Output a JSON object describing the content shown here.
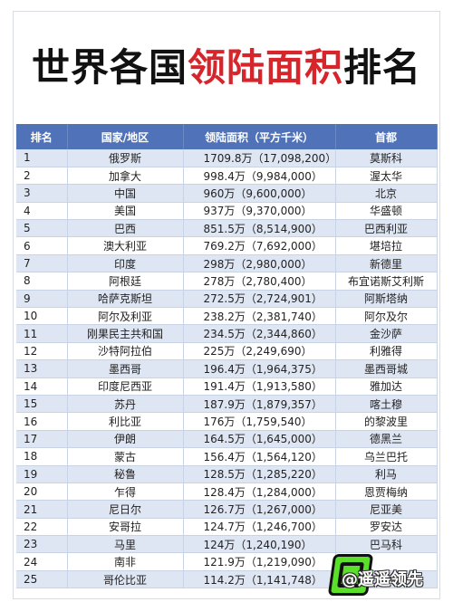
{
  "title": {
    "part1": "世界各国",
    "part2": "领陆面积",
    "part3": "排名"
  },
  "table": {
    "headers": [
      "排名",
      "国家/地区",
      "领陆面积（平方千米）",
      "首都"
    ],
    "rows": [
      {
        "rank": "1",
        "country": "俄罗斯",
        "area": "1709.8万（17,098,200）",
        "capital": "莫斯科"
      },
      {
        "rank": "2",
        "country": "加拿大",
        "area": "998.4万（9,984,000）",
        "capital": "渥太华"
      },
      {
        "rank": "3",
        "country": "中国",
        "area": "960万（9,600,000）",
        "capital": "北京"
      },
      {
        "rank": "4",
        "country": "美国",
        "area": "937万（9,370,000）",
        "capital": "华盛顿"
      },
      {
        "rank": "5",
        "country": "巴西",
        "area": "851.5万（8,514,900）",
        "capital": "巴西利亚"
      },
      {
        "rank": "6",
        "country": "澳大利亚",
        "area": "769.2万（7,692,000）",
        "capital": "堪培拉"
      },
      {
        "rank": "7",
        "country": "印度",
        "area": "298万（2,980,000）",
        "capital": "新德里"
      },
      {
        "rank": "8",
        "country": "阿根廷",
        "area": "278万（2,780,400）",
        "capital": "布宜诺斯艾利斯"
      },
      {
        "rank": "9",
        "country": "哈萨克斯坦",
        "area": "272.5万（2,724,901）",
        "capital": "阿斯塔纳"
      },
      {
        "rank": "10",
        "country": "阿尔及利亚",
        "area": "238.2万（2,381,740）",
        "capital": "阿尔及尔"
      },
      {
        "rank": "11",
        "country": "刚果民主共和国",
        "area": "234.5万（2,344,860）",
        "capital": "金沙萨"
      },
      {
        "rank": "12",
        "country": "沙特阿拉伯",
        "area": "225万（2,249,690）",
        "capital": "利雅得"
      },
      {
        "rank": "13",
        "country": "墨西哥",
        "area": "196.4万（1,964,375）",
        "capital": "墨西哥城"
      },
      {
        "rank": "14",
        "country": "印度尼西亚",
        "area": "191.4万（1,913,580）",
        "capital": "雅加达"
      },
      {
        "rank": "15",
        "country": "苏丹",
        "area": "187.9万（1,879,357）",
        "capital": "喀土穆"
      },
      {
        "rank": "16",
        "country": "利比亚",
        "area": "176万（1,759,540）",
        "capital": "的黎波里"
      },
      {
        "rank": "17",
        "country": "伊朗",
        "area": "164.5万（1,645,000）",
        "capital": "德黑兰"
      },
      {
        "rank": "18",
        "country": "蒙古",
        "area": "156.4万（1,564,120）",
        "capital": "乌兰巴托"
      },
      {
        "rank": "19",
        "country": "秘鲁",
        "area": "128.5万（1,285,220）",
        "capital": "利马"
      },
      {
        "rank": "20",
        "country": "乍得",
        "area": "128.4万（1,284,000）",
        "capital": "恩贾梅纳"
      },
      {
        "rank": "21",
        "country": "尼日尔",
        "area": "126.7万（1,267,000）",
        "capital": "尼亚美"
      },
      {
        "rank": "22",
        "country": "安哥拉",
        "area": "124.7万（1,246,700）",
        "capital": "罗安达"
      },
      {
        "rank": "23",
        "country": "马里",
        "area": "124万（1,240,190）",
        "capital": "巴马科"
      },
      {
        "rank": "24",
        "country": "南非",
        "area": "121.9万（1,219,090）",
        "capital": ""
      },
      {
        "rank": "25",
        "country": "哥伦比亚",
        "area": "114.2万（1,141,748）",
        "capital": ""
      }
    ]
  },
  "watermark": {
    "text": "@遥遥领先"
  },
  "colors": {
    "header_bg": "#4f72b8",
    "row_alt": "#dfe6f3",
    "title_accent": "#d6262b",
    "logo_green": "#5ae02b"
  }
}
